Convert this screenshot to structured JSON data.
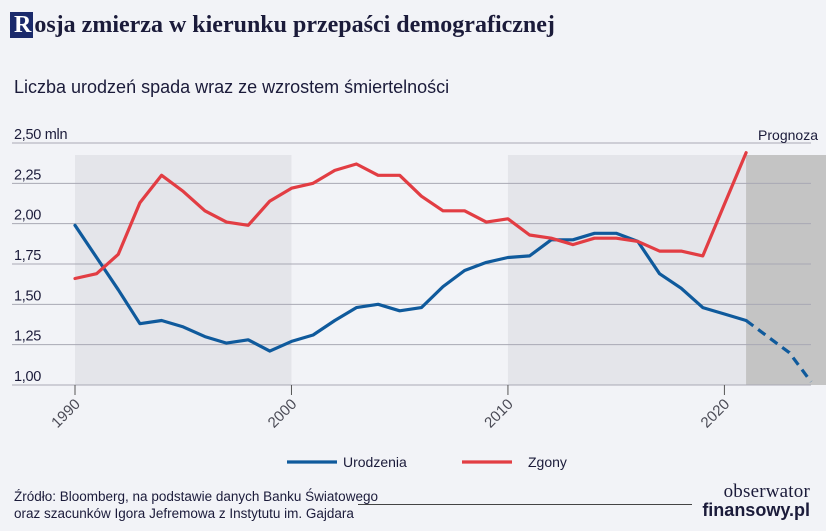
{
  "header": {
    "title_initial": "R",
    "title_rest": "osja zmierza w kierunku przepaści demograficznej",
    "subtitle": "Liczba urodzeń spada wraz ze wzrostem śmiertelności"
  },
  "chart_data": {
    "type": "line",
    "y_unit_label": "2,50 mln",
    "ylim": [
      1.0,
      2.5
    ],
    "y_ticks": [
      1.0,
      1.25,
      1.5,
      1.75,
      2.0,
      2.25,
      2.5
    ],
    "y_tick_labels": [
      "1,00",
      "1,25",
      "1,50",
      "1,75",
      "2,00",
      "2,25",
      "2,50 mln"
    ],
    "xlim": [
      1990,
      2024
    ],
    "x_ticks": [
      1990,
      2000,
      2010,
      2020
    ],
    "x_tick_labels": [
      "1990",
      "2000",
      "2010",
      "2020"
    ],
    "shaded_periods": [
      [
        1990,
        2000
      ],
      [
        2010,
        2021
      ]
    ],
    "forecast": {
      "label": "Prognoza",
      "from": 2021,
      "to": 2024
    },
    "series": [
      {
        "name": "Urodzenia",
        "color": "#0f5a9c",
        "x": [
          1990,
          1991,
          1992,
          1993,
          1994,
          1995,
          1996,
          1997,
          1998,
          1999,
          2000,
          2001,
          2002,
          2003,
          2004,
          2005,
          2006,
          2007,
          2008,
          2009,
          2010,
          2011,
          2012,
          2013,
          2014,
          2015,
          2016,
          2017,
          2018,
          2019,
          2020,
          2021
        ],
        "values": [
          1.99,
          1.79,
          1.59,
          1.38,
          1.4,
          1.36,
          1.3,
          1.26,
          1.28,
          1.21,
          1.27,
          1.31,
          1.4,
          1.48,
          1.5,
          1.46,
          1.48,
          1.61,
          1.71,
          1.76,
          1.79,
          1.8,
          1.9,
          1.9,
          1.94,
          1.94,
          1.89,
          1.69,
          1.6,
          1.48,
          1.44,
          1.4
        ],
        "forecast_x": [
          2021,
          2022,
          2023,
          2024
        ],
        "forecast_values": [
          1.4,
          1.3,
          1.2,
          1.02
        ]
      },
      {
        "name": "Zgony",
        "color": "#e23d43",
        "x": [
          1990,
          1991,
          1992,
          1993,
          1994,
          1995,
          1996,
          1997,
          1998,
          1999,
          2000,
          2001,
          2002,
          2003,
          2004,
          2005,
          2006,
          2007,
          2008,
          2009,
          2010,
          2011,
          2012,
          2013,
          2014,
          2015,
          2016,
          2017,
          2018,
          2019,
          2020,
          2021
        ],
        "values": [
          1.66,
          1.69,
          1.81,
          2.13,
          2.3,
          2.2,
          2.08,
          2.01,
          1.99,
          2.14,
          2.22,
          2.25,
          2.33,
          2.37,
          2.3,
          2.3,
          2.17,
          2.08,
          2.08,
          2.01,
          2.03,
          1.93,
          1.91,
          1.87,
          1.91,
          1.91,
          1.89,
          1.83,
          1.83,
          1.8,
          2.12,
          2.44
        ]
      }
    ],
    "legend": [
      {
        "label": "Urodzenia",
        "color": "#0f5a9c"
      },
      {
        "label": "Zgony",
        "color": "#e23d43"
      }
    ],
    "legend_position": "bottom-center"
  },
  "source": {
    "line1": "Źródło: Bloomberg, na podstawie danych Banku Światowego",
    "line2": "oraz szacunków Igora Jefremowa z Instytutu im. Gajdara"
  },
  "logo": {
    "line1": "obserwator",
    "line2": "finansowy.pl"
  }
}
